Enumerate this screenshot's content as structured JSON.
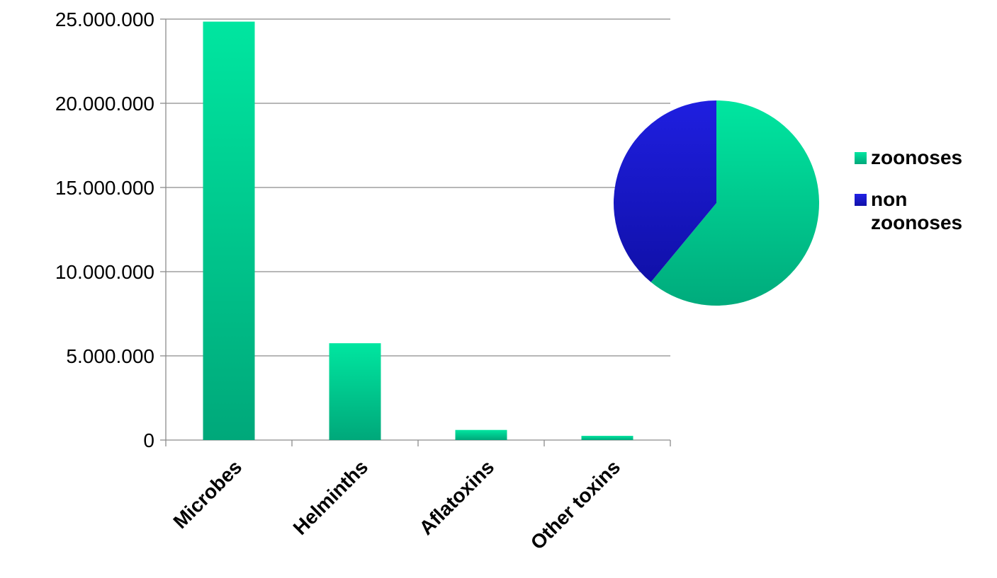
{
  "chart_data": [
    {
      "type": "bar",
      "categories": [
        "Microbes",
        "Helminths",
        "Aflatoxins",
        "Other toxins"
      ],
      "values": [
        24850000,
        5750000,
        600000,
        250000
      ],
      "ylim": [
        0,
        25000000
      ],
      "yticks": [
        "0",
        "5.000.000",
        "10.000.000",
        "15.000.000",
        "20.000.000",
        "25.000.000"
      ],
      "ytick_values": [
        0,
        5000000,
        10000000,
        15000000,
        20000000,
        25000000
      ],
      "grid": true,
      "colors": {
        "bar_top": "#00e6a0",
        "bar_bottom": "#00a87a"
      },
      "title": "",
      "xlabel": "",
      "ylabel": ""
    },
    {
      "type": "pie",
      "labels": [
        "zoonoses",
        "non zoonoses"
      ],
      "values": [
        61,
        39
      ],
      "colors": [
        "#00d796",
        "#1818cf"
      ],
      "legend": "right"
    }
  ],
  "legend": {
    "items": [
      {
        "label": "zoonoses",
        "color": "#00d796"
      },
      {
        "label": "non zoonoses",
        "color": "#1818cf"
      }
    ]
  }
}
